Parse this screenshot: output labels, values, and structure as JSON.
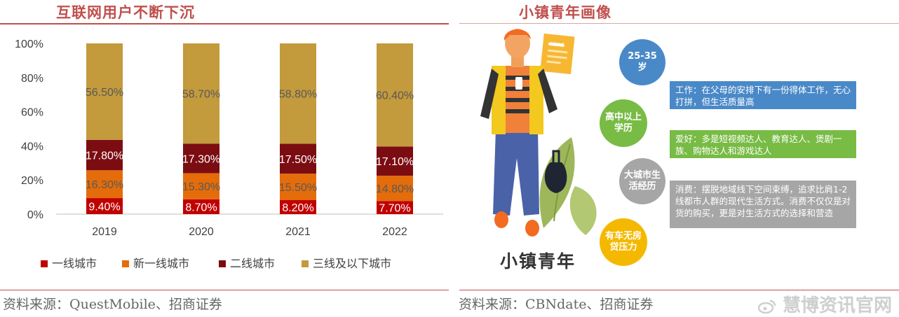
{
  "left_panel": {
    "title": "互联网用户不断下沉",
    "source": "资料来源：QuestMobile、招商证券"
  },
  "right_panel": {
    "title": "小镇青年画像",
    "source": "资料来源：CBNdate、招商证券",
    "newspaper_label": "NEWS",
    "town_label": "小镇青年",
    "bubbles": [
      {
        "text": "25-35岁",
        "color": "#4a89c8"
      },
      {
        "text": "高中以上学历",
        "color": "#78bb45"
      },
      {
        "text": "大城市生活经历",
        "color": "#a6a6a6"
      },
      {
        "text": "有车无房贷压力",
        "color": "#f5b800"
      }
    ],
    "cards": [
      {
        "text": "工作：在父母的安排下有一份得体工作，无心打拼，但生活质量高",
        "color": "#4a89c8"
      },
      {
        "text": "爱好：多是短视频达人、教育达人、煲剧一族、购物达人和游戏达人",
        "color": "#78bb45"
      },
      {
        "text": "消费：摆脱地域线下空间束缚，追求比肩1-2线都市人群的现代生活方式。消费不仅仅是对货的购买，更是对生活方式的选择和营造",
        "color": "#a6a6a6"
      }
    ]
  },
  "watermark": "慧博资讯官网",
  "chart_data": {
    "type": "bar",
    "stacked": true,
    "categories": [
      "2019",
      "2020",
      "2021",
      "2022"
    ],
    "ylim": [
      0,
      100
    ],
    "yticks": [
      "0%",
      "20%",
      "40%",
      "60%",
      "80%",
      "100%"
    ],
    "legend_position": "bottom",
    "grid": false,
    "series": [
      {
        "name": "一线城市",
        "color": "#c00000",
        "values": [
          9.4,
          8.7,
          8.2,
          7.7
        ],
        "labels": [
          "9.40%",
          "8.70%",
          "8.20%",
          "7.70%"
        ],
        "label_color": "#ffffff"
      },
      {
        "name": "新一线城市",
        "color": "#e46c0a",
        "values": [
          16.3,
          15.3,
          15.5,
          14.8
        ],
        "labels": [
          "16.30%",
          "15.30%",
          "15.50%",
          "14.80%"
        ],
        "label_color": "#595959"
      },
      {
        "name": "二线城市",
        "color": "#7b0d12",
        "values": [
          17.8,
          17.3,
          17.5,
          17.1
        ],
        "labels": [
          "17.80%",
          "17.30%",
          "17.50%",
          "17.10%"
        ],
        "label_color": "#ffffff"
      },
      {
        "name": "三线及以下城市",
        "color": "#c39a3c",
        "values": [
          56.5,
          58.7,
          58.8,
          60.4
        ],
        "labels": [
          "56.50%",
          "58.70%",
          "58.80%",
          "60.40%"
        ],
        "label_color": "#595959"
      }
    ]
  }
}
